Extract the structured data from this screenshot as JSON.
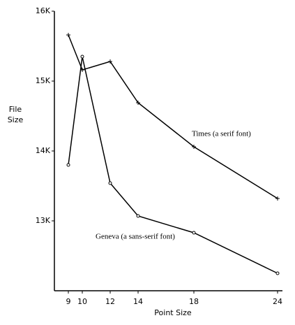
{
  "chart_data": {
    "type": "line",
    "ylabel": [
      "File",
      "Size"
    ],
    "xlabel": "Point Size",
    "x": [
      9,
      10,
      12,
      14,
      18,
      24
    ],
    "xlim": [
      8,
      24.35
    ],
    "xticks": [
      9,
      10,
      12,
      14,
      18,
      24
    ],
    "ylim": [
      12000,
      16000
    ],
    "yticks": [
      {
        "value": 13000,
        "label": "13K"
      },
      {
        "value": 14000,
        "label": "14K"
      },
      {
        "value": 15000,
        "label": "15K"
      },
      {
        "value": 16000,
        "label": "16K"
      }
    ],
    "series": [
      {
        "name": "Times (a serif font)",
        "color": "#000000",
        "marker": "plus",
        "values": [
          15660,
          15160,
          15280,
          14690,
          14060,
          13320
        ]
      },
      {
        "name": "Geneva (a sans-serif font)",
        "color": "#000000",
        "marker": "circle",
        "values": [
          13800,
          15350,
          13540,
          13070,
          12830,
          12250
        ]
      }
    ]
  }
}
